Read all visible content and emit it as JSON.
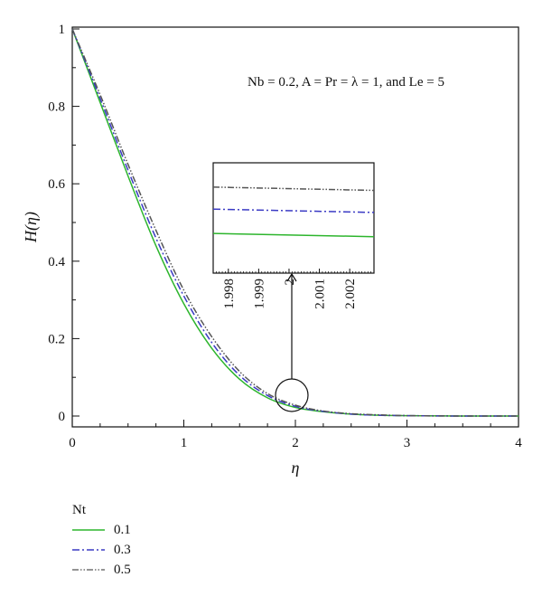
{
  "chart_data": {
    "type": "line",
    "xlabel": "η",
    "ylabel": "H(η)",
    "xlim": [
      0,
      4
    ],
    "ylim": [
      0,
      1
    ],
    "x_ticks": [
      "0",
      "1",
      "2",
      "3",
      "4"
    ],
    "y_ticks": [
      "0",
      "0.2",
      "0.4",
      "0.6",
      "0.8",
      "1"
    ],
    "annotation": "Nb = 0.2, A = Pr = λ = 1, and Le = 5",
    "x": [
      0,
      0.25,
      0.5,
      0.75,
      1.0,
      1.25,
      1.5,
      1.75,
      2.0,
      2.25,
      2.5,
      2.75,
      3.0,
      3.5,
      4.0
    ],
    "series": [
      {
        "name": "0.1",
        "color": "#2db52d",
        "dash": "solid",
        "values": [
          1.0,
          0.81,
          0.62,
          0.44,
          0.29,
          0.175,
          0.095,
          0.047,
          0.022,
          0.011,
          0.005,
          0.002,
          0.001,
          0.0,
          0.0
        ]
      },
      {
        "name": "0.3",
        "color": "#3a3ac4",
        "dash": "dashdot",
        "values": [
          1.0,
          0.82,
          0.635,
          0.46,
          0.31,
          0.19,
          0.105,
          0.053,
          0.025,
          0.012,
          0.005,
          0.002,
          0.001,
          0.0,
          0.0
        ]
      },
      {
        "name": "0.5",
        "color": "#555555",
        "dash": "dashdotdot",
        "values": [
          1.0,
          0.83,
          0.65,
          0.48,
          0.325,
          0.205,
          0.115,
          0.058,
          0.028,
          0.013,
          0.006,
          0.003,
          0.001,
          0.0,
          0.0
        ]
      }
    ],
    "inset": {
      "x_ticks": [
        "1.998",
        "1.999",
        "2",
        "2.001",
        "2.002"
      ],
      "x_tick_values": [
        1.998,
        1.999,
        2.0,
        2.001,
        2.002
      ],
      "xlim": [
        1.9975,
        2.0028
      ],
      "series_levels": [
        {
          "name": "0.1",
          "start": 0.36,
          "end": 0.33
        },
        {
          "name": "0.3",
          "start": 0.58,
          "end": 0.55
        },
        {
          "name": "0.5",
          "start": 0.78,
          "end": 0.75
        }
      ]
    },
    "legend": {
      "title": "Nt",
      "placement": "below"
    }
  }
}
